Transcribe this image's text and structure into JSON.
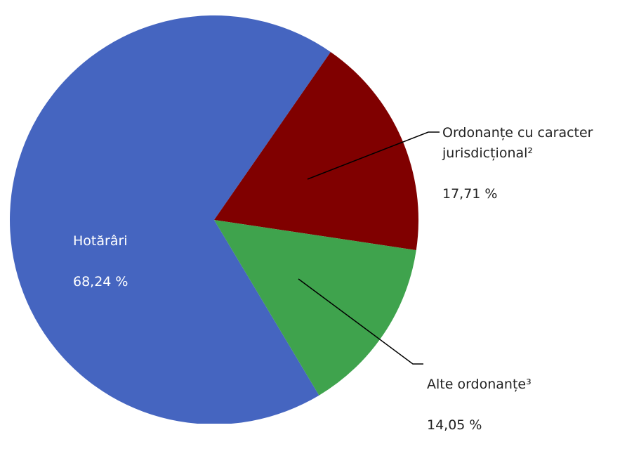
{
  "chart_data": {
    "type": "pie",
    "categories": [
      "Hotărâri",
      "Ordonanțe cu caracter\njurisdicțional²",
      "Alte ordonanțe³"
    ],
    "values": [
      68.24,
      17.71,
      14.05
    ],
    "value_labels": [
      "68,24 %",
      "17,71 %",
      "14,05 %"
    ],
    "colors": [
      "#4565c0",
      "#800000",
      "#3fa34d"
    ]
  }
}
